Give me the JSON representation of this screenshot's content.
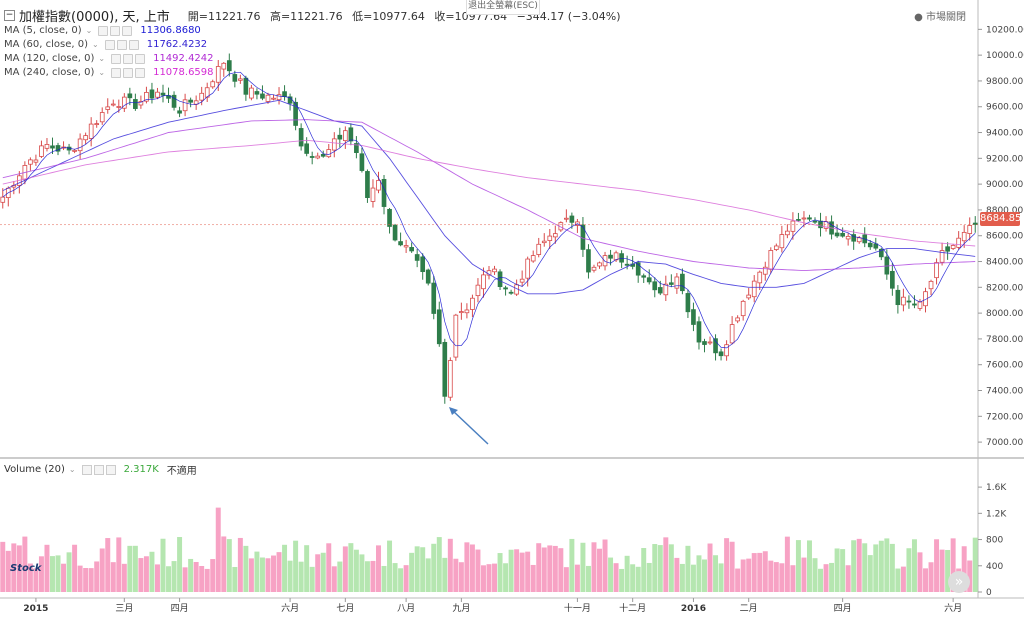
{
  "header": {
    "symbol": "加權指數(0000), 天, 上市",
    "open_label": "開=11221.76",
    "high_label": "高=11221.76",
    "low_label": "低=10977.64",
    "close_label": "收=10977.64",
    "change_label": "−344.17 (−3.04%)",
    "exit_fullscreen": "退出全螢幕(ESC)",
    "market_status": "市場關閉",
    "current_price": "8684.85"
  },
  "legends": [
    {
      "label": "MA (5, close, 0)",
      "value": "11306.8680",
      "color": "#1a1ad4"
    },
    {
      "label": "MA (60, close, 0)",
      "value": "11762.4232",
      "color": "#2f1fd1"
    },
    {
      "label": "MA (120, close, 0)",
      "value": "11492.4242",
      "color": "#b02ad4"
    },
    {
      "label": "MA (240, close, 0)",
      "value": "11078.6598",
      "color": "#d42ad4"
    }
  ],
  "volume_legend": {
    "label": "Volume (20)",
    "value": "2.317K",
    "note": "不適用",
    "value_color": "#3aa83a"
  },
  "logo_text": "Stock",
  "chart_data": {
    "type": "candlestick",
    "price_axis": {
      "min": 6900,
      "max": 10350,
      "ticks": [
        7000,
        7200,
        7400,
        7600,
        7800,
        8000,
        8200,
        8400,
        8600,
        8800,
        9000,
        9200,
        9400,
        9600,
        9800,
        10000,
        10200
      ],
      "tick_labels": [
        "7000.00",
        "7200.00",
        "7400.00",
        "7600.00",
        "7800.00",
        "8000.00",
        "8200.00",
        "8400.00",
        "8600.00",
        "8800.00",
        "9000.00",
        "9200.00",
        "9400.00",
        "9600.00",
        "9800.00",
        "10000.00",
        "10200.00"
      ]
    },
    "volume_axis": {
      "min": 0,
      "max": 1800,
      "ticks": [
        0,
        400,
        800,
        1200,
        1600
      ],
      "tick_labels": [
        "0",
        "400",
        "800",
        "1.2K",
        "1.6K"
      ]
    },
    "x_labels": [
      "2015",
      "三月",
      "四月",
      "六月",
      "七月",
      "八月",
      "九月",
      "十一月",
      "十二月",
      "2016",
      "二月",
      "四月",
      "六月"
    ],
    "x_label_bars": [
      6,
      22,
      32,
      52,
      62,
      73,
      83,
      104,
      114,
      125,
      135,
      152,
      172
    ],
    "bar_count": 177,
    "price_keypoints": [
      [
        0,
        8900
      ],
      [
        4,
        9150
      ],
      [
        8,
        9300
      ],
      [
        12,
        9250
      ],
      [
        16,
        9450
      ],
      [
        20,
        9650
      ],
      [
        24,
        9620
      ],
      [
        28,
        9720
      ],
      [
        32,
        9580
      ],
      [
        36,
        9700
      ],
      [
        40,
        9950
      ],
      [
        44,
        9720
      ],
      [
        48,
        9680
      ],
      [
        52,
        9660
      ],
      [
        54,
        9300
      ],
      [
        58,
        9200
      ],
      [
        62,
        9420
      ],
      [
        64,
        9250
      ],
      [
        66,
        8900
      ],
      [
        68,
        9050
      ],
      [
        70,
        8650
      ],
      [
        74,
        8450
      ],
      [
        77,
        8200
      ],
      [
        79,
        7750
      ],
      [
        80,
        7350
      ],
      [
        82,
        8000
      ],
      [
        84,
        8050
      ],
      [
        88,
        8350
      ],
      [
        92,
        8150
      ],
      [
        96,
        8450
      ],
      [
        100,
        8650
      ],
      [
        104,
        8750
      ],
      [
        106,
        8300
      ],
      [
        110,
        8450
      ],
      [
        114,
        8400
      ],
      [
        118,
        8150
      ],
      [
        122,
        8300
      ],
      [
        126,
        7800
      ],
      [
        130,
        7700
      ],
      [
        134,
        8100
      ],
      [
        138,
        8400
      ],
      [
        142,
        8650
      ],
      [
        146,
        8750
      ],
      [
        150,
        8650
      ],
      [
        154,
        8600
      ],
      [
        158,
        8500
      ],
      [
        162,
        8100
      ],
      [
        166,
        8050
      ],
      [
        170,
        8450
      ],
      [
        174,
        8600
      ],
      [
        176,
        8684
      ]
    ],
    "ma_line_values": {
      "ma60": [
        [
          0,
          8950
        ],
        [
          10,
          9150
        ],
        [
          20,
          9350
        ],
        [
          30,
          9480
        ],
        [
          40,
          9570
        ],
        [
          50,
          9650
        ],
        [
          60,
          9490
        ],
        [
          65,
          9450
        ],
        [
          70,
          9200
        ],
        [
          75,
          8900
        ],
        [
          80,
          8600
        ],
        [
          85,
          8380
        ],
        [
          90,
          8250
        ],
        [
          95,
          8150
        ],
        [
          100,
          8150
        ],
        [
          105,
          8180
        ],
        [
          110,
          8300
        ],
        [
          115,
          8400
        ],
        [
          120,
          8380
        ],
        [
          125,
          8300
        ],
        [
          130,
          8230
        ],
        [
          135,
          8200
        ],
        [
          140,
          8200
        ],
        [
          145,
          8230
        ],
        [
          150,
          8330
        ],
        [
          155,
          8430
        ],
        [
          160,
          8500
        ],
        [
          165,
          8500
        ],
        [
          170,
          8470
        ],
        [
          176,
          8440
        ]
      ],
      "ma120": [
        [
          0,
          9050
        ],
        [
          15,
          9200
        ],
        [
          30,
          9400
        ],
        [
          45,
          9490
        ],
        [
          55,
          9500
        ],
        [
          65,
          9480
        ],
        [
          75,
          9250
        ],
        [
          85,
          9000
        ],
        [
          95,
          8800
        ],
        [
          105,
          8580
        ],
        [
          115,
          8480
        ],
        [
          125,
          8400
        ],
        [
          135,
          8350
        ],
        [
          145,
          8330
        ],
        [
          155,
          8350
        ],
        [
          165,
          8380
        ],
        [
          176,
          8400
        ]
      ],
      "ma240": [
        [
          0,
          9000
        ],
        [
          15,
          9150
        ],
        [
          30,
          9250
        ],
        [
          45,
          9300
        ],
        [
          55,
          9340
        ],
        [
          65,
          9300
        ],
        [
          75,
          9200
        ],
        [
          85,
          9120
        ],
        [
          95,
          9050
        ],
        [
          105,
          9000
        ],
        [
          115,
          8950
        ],
        [
          125,
          8880
        ],
        [
          135,
          8800
        ],
        [
          145,
          8700
        ],
        [
          155,
          8620
        ],
        [
          165,
          8560
        ],
        [
          176,
          8520
        ]
      ]
    }
  }
}
